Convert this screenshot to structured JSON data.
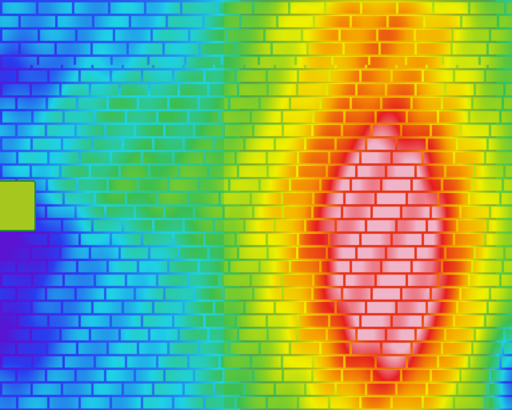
{
  "image": {
    "kind": "thermal-image-of-brick-wall",
    "palette": {
      "cold_violet": "#5a14d2",
      "cold_blue": "#2a3cf0",
      "cool_cyan": "#1ed2e6",
      "mid_green": "#39b43c",
      "warm_yellow": "#f0f000",
      "hot_orange": "#f5a000",
      "hottest_red": "#e61e1e",
      "hotspot_pink": "#f0b4c8",
      "mortar_dark": "#1f5a3a"
    },
    "legend_text": ""
  }
}
